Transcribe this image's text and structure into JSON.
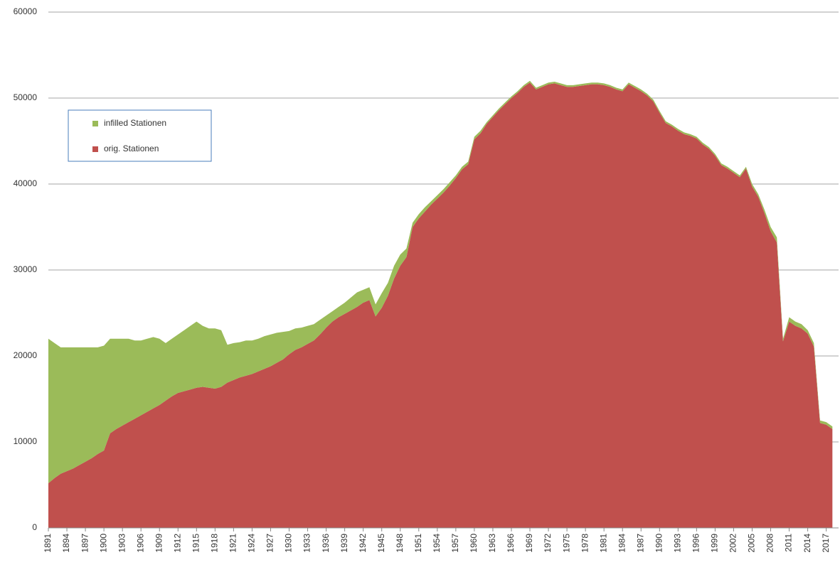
{
  "chart_data": {
    "type": "stacked-area",
    "x": [
      1891,
      1892,
      1893,
      1894,
      1895,
      1896,
      1897,
      1898,
      1899,
      1900,
      1901,
      1902,
      1903,
      1904,
      1905,
      1906,
      1907,
      1908,
      1909,
      1910,
      1911,
      1912,
      1913,
      1914,
      1915,
      1916,
      1917,
      1918,
      1919,
      1920,
      1921,
      1922,
      1923,
      1924,
      1925,
      1926,
      1927,
      1928,
      1929,
      1930,
      1931,
      1932,
      1933,
      1934,
      1935,
      1936,
      1937,
      1938,
      1939,
      1940,
      1941,
      1942,
      1943,
      1944,
      1945,
      1946,
      1947,
      1948,
      1949,
      1950,
      1951,
      1952,
      1953,
      1954,
      1955,
      1956,
      1957,
      1958,
      1959,
      1960,
      1961,
      1962,
      1963,
      1964,
      1965,
      1966,
      1967,
      1968,
      1969,
      1970,
      1971,
      1972,
      1973,
      1974,
      1975,
      1976,
      1977,
      1978,
      1979,
      1980,
      1981,
      1982,
      1983,
      1984,
      1985,
      1986,
      1987,
      1988,
      1989,
      1990,
      1991,
      1992,
      1993,
      1994,
      1995,
      1996,
      1997,
      1998,
      1999,
      2000,
      2001,
      2002,
      2003,
      2004,
      2005,
      2006,
      2007,
      2008,
      2009,
      2010,
      2011,
      2012,
      2013,
      2014,
      2015,
      2016,
      2017,
      2018
    ],
    "series": [
      {
        "name": "orig. Stationen",
        "color": "#c0504d",
        "values": [
          5200,
          5800,
          6300,
          6600,
          6900,
          7300,
          7700,
          8100,
          8600,
          9000,
          11000,
          11500,
          11900,
          12300,
          12700,
          13100,
          13500,
          13900,
          14300,
          14800,
          15300,
          15700,
          15900,
          16100,
          16300,
          16400,
          16300,
          16200,
          16400,
          16900,
          17200,
          17500,
          17700,
          17900,
          18200,
          18500,
          18800,
          19200,
          19600,
          20200,
          20700,
          21000,
          21400,
          21800,
          22500,
          23300,
          24000,
          24500,
          24900,
          25300,
          25700,
          26200,
          26500,
          24600,
          25600,
          27000,
          29000,
          30500,
          31500,
          35000,
          36000,
          36800,
          37600,
          38300,
          39000,
          39800,
          40700,
          41700,
          42300,
          45200,
          45900,
          47000,
          47800,
          48600,
          49300,
          50000,
          50600,
          51300,
          51800,
          51000,
          51300,
          51600,
          51700,
          51500,
          51300,
          51300,
          51400,
          51500,
          51600,
          51600,
          51500,
          51300,
          51000,
          50800,
          51600,
          51200,
          50800,
          50300,
          49600,
          48300,
          47100,
          46700,
          46200,
          45800,
          45600,
          45300,
          44600,
          44100,
          43300,
          42200,
          41800,
          41300,
          40800,
          41800,
          39700,
          38500,
          36600,
          34500,
          33200,
          21700,
          24000,
          23500,
          23200,
          22600,
          21100,
          12200,
          12000,
          11500
        ]
      },
      {
        "name": "infilled Stationen",
        "color": "#9bbb59",
        "values": [
          16800,
          15700,
          14700,
          14400,
          14100,
          13700,
          13300,
          12900,
          12400,
          12200,
          11000,
          10500,
          10100,
          9700,
          9100,
          8700,
          8500,
          8300,
          7700,
          6700,
          6700,
          6800,
          7100,
          7400,
          7700,
          7100,
          6900,
          7000,
          6600,
          4400,
          4300,
          4100,
          4100,
          3900,
          3800,
          3800,
          3700,
          3500,
          3200,
          2700,
          2500,
          2300,
          2100,
          1900,
          1700,
          1400,
          1200,
          1200,
          1300,
          1500,
          1700,
          1500,
          1500,
          1400,
          1700,
          1500,
          1500,
          1300,
          1000,
          500,
          500,
          500,
          400,
          400,
          400,
          400,
          300,
          300,
          300,
          300,
          300,
          200,
          200,
          200,
          200,
          200,
          200,
          200,
          200,
          200,
          200,
          200,
          200,
          200,
          200,
          200,
          200,
          200,
          200,
          200,
          200,
          200,
          200,
          200,
          200,
          200,
          200,
          200,
          200,
          200,
          200,
          200,
          200,
          200,
          200,
          200,
          200,
          200,
          200,
          200,
          200,
          200,
          200,
          200,
          300,
          300,
          400,
          500,
          600,
          300,
          500,
          500,
          500,
          400,
          400,
          300,
          300,
          300
        ]
      }
    ],
    "xlim": [
      1891,
      2019
    ],
    "xticks": [
      1891,
      1894,
      1897,
      1900,
      1903,
      1906,
      1909,
      1912,
      1915,
      1918,
      1921,
      1924,
      1927,
      1930,
      1933,
      1936,
      1939,
      1942,
      1945,
      1948,
      1951,
      1954,
      1957,
      1960,
      1963,
      1966,
      1969,
      1972,
      1975,
      1978,
      1981,
      1984,
      1987,
      1990,
      1993,
      1996,
      1999,
      2002,
      2005,
      2008,
      2011,
      2014,
      2017
    ],
    "ylim": [
      0,
      60000
    ],
    "yticks": [
      0,
      10000,
      20000,
      30000,
      40000,
      50000,
      60000
    ],
    "grid": true,
    "legend": "upper left"
  }
}
